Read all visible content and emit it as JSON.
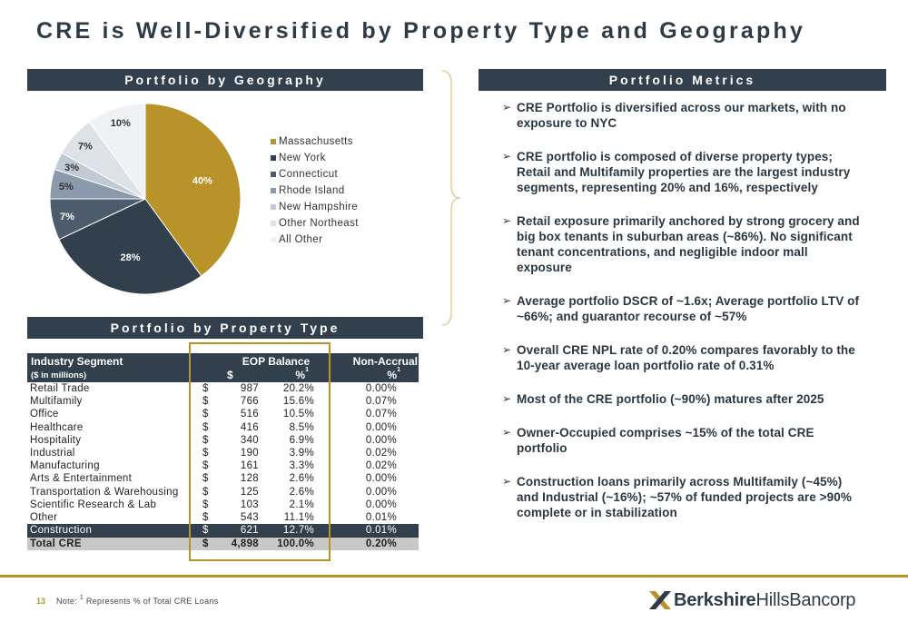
{
  "title": "CRE is Well-Diversified by Property Type and Geography",
  "geo_header": "Portfolio by Geography",
  "type_header": "Portfolio by Property Type",
  "metrics_header": "Portfolio Metrics",
  "colors": {
    "navy": "#323f4c",
    "gold": "#b89329"
  },
  "chart_data": {
    "type": "pie",
    "slices": [
      {
        "name": "Massachusetts",
        "value": 40,
        "label": "40%",
        "color": "#b89329"
      },
      {
        "name": "New York",
        "value": 28,
        "label": "28%",
        "color": "#323f4c"
      },
      {
        "name": "Connecticut",
        "value": 7,
        "label": "7%",
        "color": "#4d5c6c"
      },
      {
        "name": "Rhode Island",
        "value": 5,
        "label": "5%",
        "color": "#8a99ab"
      },
      {
        "name": "New Hampshire",
        "value": 3,
        "label": "3%",
        "color": "#c1cad4"
      },
      {
        "name": "Other Northeast",
        "value": 7,
        "label": "7%",
        "color": "#dde2e8"
      },
      {
        "name": "All Other",
        "value": 10,
        "label": "10%",
        "color": "#eff1f4"
      }
    ],
    "legend_position": "right"
  },
  "table": {
    "headers": {
      "segment": "Industry Segment",
      "units": "($ in millions)",
      "eop": "EOP Balance",
      "dollar": "$",
      "pct": "%",
      "pct_sup": "1",
      "nonaccrual": "Non-Accrual",
      "na_pct": "%",
      "na_sup": "1"
    },
    "rows": [
      {
        "segment": "Retail Trade",
        "dollar": "$",
        "balance": "987",
        "pct": "20.2%",
        "nonaccrual": "0.00%"
      },
      {
        "segment": "Multifamily",
        "dollar": "$",
        "balance": "766",
        "pct": "15.6%",
        "nonaccrual": "0.07%"
      },
      {
        "segment": "Office",
        "dollar": "$",
        "balance": "516",
        "pct": "10.5%",
        "nonaccrual": "0.07%"
      },
      {
        "segment": "Healthcare",
        "dollar": "$",
        "balance": "416",
        "pct": "8.5%",
        "nonaccrual": "0.00%"
      },
      {
        "segment": "Hospitality",
        "dollar": "$",
        "balance": "340",
        "pct": "6.9%",
        "nonaccrual": "0.00%"
      },
      {
        "segment": "Industrial",
        "dollar": "$",
        "balance": "190",
        "pct": "3.9%",
        "nonaccrual": "0.02%"
      },
      {
        "segment": "Manufacturing",
        "dollar": "$",
        "balance": "161",
        "pct": "3.3%",
        "nonaccrual": "0.02%"
      },
      {
        "segment": "Arts & Entertainment",
        "dollar": "$",
        "balance": "128",
        "pct": "2.6%",
        "nonaccrual": "0.00%"
      },
      {
        "segment": "Transportation & Warehousing",
        "dollar": "$",
        "balance": "125",
        "pct": "2.6%",
        "nonaccrual": "0.00%"
      },
      {
        "segment": "Scientific Research & Lab",
        "dollar": "$",
        "balance": "103",
        "pct": "2.1%",
        "nonaccrual": "0.00%"
      },
      {
        "segment": "Other",
        "dollar": "$",
        "balance": "543",
        "pct": "11.1%",
        "nonaccrual": "0.01%"
      },
      {
        "segment": "Construction",
        "dollar": "$",
        "balance": "621",
        "pct": "12.7%",
        "nonaccrual": "0.01%"
      }
    ],
    "total": {
      "segment": "Total CRE",
      "dollar": "$",
      "balance": "4,898",
      "pct": "100.0%",
      "nonaccrual": "0.20%"
    }
  },
  "bullets": [
    "CRE Portfolio is diversified across our markets, with no exposure to NYC",
    "CRE portfolio is composed of diverse property types; Retail and Multifamily properties are the largest industry segments, representing 20% and 16%, respectively",
    "Retail exposure primarily anchored by strong grocery and big box tenants in suburban areas (~86%).  No significant tenant concentrations, and negligible indoor mall exposure",
    "Average portfolio DSCR of ~1.6x; Average portfolio LTV of ~66%; and guarantor recourse of ~57%",
    "Overall CRE NPL rate of 0.20% compares favorably to the 10-year average loan portfolio rate of 0.31%",
    "Most of the CRE portfolio (~90%) matures after 2025",
    "Owner-Occupied comprises ~15% of the total CRE portfolio",
    "Construction loans primarily across Multifamily (~45%) and Industrial (~16%); ~57% of funded projects are >90% complete or in stabilization"
  ],
  "footer": {
    "page_number": "13",
    "note_prefix": "Note: ",
    "note_sup": "1",
    "note_text": " Represents % of Total CRE Loans"
  },
  "logo": {
    "bold": "Berkshire",
    "regular": "HillsBancorp",
    "icon": "berkshire-x-icon"
  }
}
